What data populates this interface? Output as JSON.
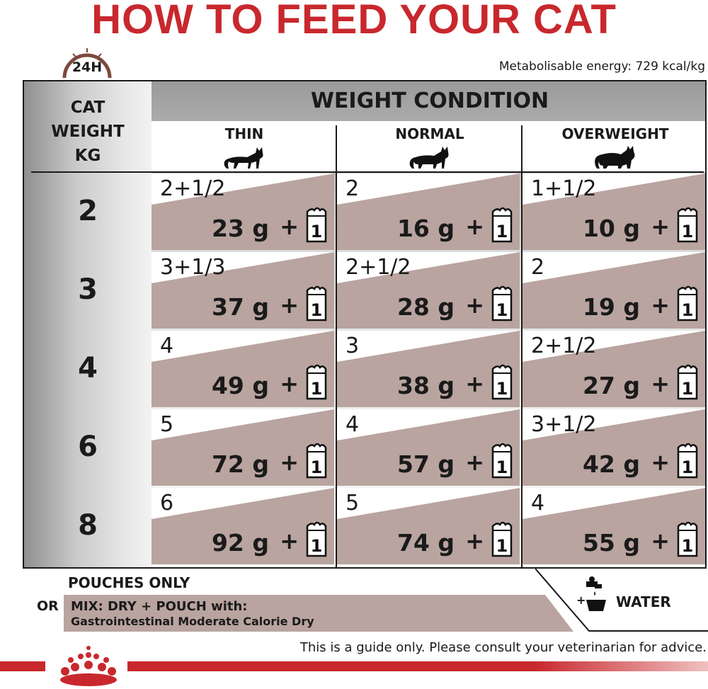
{
  "title": "HOW TO FEED YOUR CAT",
  "clock_label": "24H",
  "energy": "Metabolisable energy: 729 kcal/kg",
  "header": {
    "cat_weight_line1": "CAT",
    "cat_weight_line2": "WEIGHT",
    "cat_weight_line3": "KG",
    "weight_condition": "WEIGHT CONDITION",
    "conditions": [
      "THIN",
      "NORMAL",
      "OVERWEIGHT"
    ]
  },
  "rows": [
    {
      "weight": "2",
      "cells": [
        {
          "pouch": "2+1/2",
          "grams": "23 g"
        },
        {
          "pouch": "2",
          "grams": "16 g"
        },
        {
          "pouch": "1+1/2",
          "grams": "10 g"
        }
      ]
    },
    {
      "weight": "3",
      "cells": [
        {
          "pouch": "3+1/3",
          "grams": "37 g"
        },
        {
          "pouch": "2+1/2",
          "grams": "28 g"
        },
        {
          "pouch": "2",
          "grams": "19 g"
        }
      ]
    },
    {
      "weight": "4",
      "cells": [
        {
          "pouch": "4",
          "grams": "49 g"
        },
        {
          "pouch": "3",
          "grams": "38 g"
        },
        {
          "pouch": "2+1/2",
          "grams": "27 g"
        }
      ]
    },
    {
      "weight": "6",
      "cells": [
        {
          "pouch": "5",
          "grams": "72 g"
        },
        {
          "pouch": "4",
          "grams": "57 g"
        },
        {
          "pouch": "3+1/2",
          "grams": "42 g"
        }
      ]
    },
    {
      "weight": "8",
      "cells": [
        {
          "pouch": "6",
          "grams": "92 g"
        },
        {
          "pouch": "5",
          "grams": "74 g"
        },
        {
          "pouch": "4",
          "grams": "55 g"
        }
      ]
    }
  ],
  "plus_sign": "+",
  "bag_number": "1",
  "footer": {
    "pouches_only": "POUCHES ONLY",
    "or": "OR",
    "mix_line1": "MIX: DRY + POUCH with:",
    "mix_line2": "Gastrointestinal Moderate Calorie Dry",
    "water": "WATER",
    "water_plus": "+",
    "disclaimer": "This is a guide only. Please consult your veterinarian for advice."
  },
  "colors": {
    "brand_red": "#c8282d",
    "band_taupe": "#b9a49f"
  }
}
